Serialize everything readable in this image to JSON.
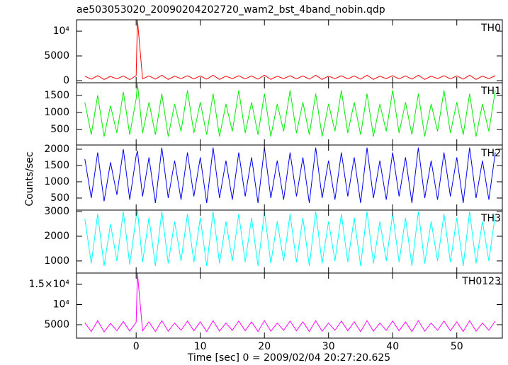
{
  "figure": {
    "title": "ae503053020_20090204202720_wam2_bst_4band_nobin.qdp",
    "ylabel": "Counts/sec",
    "xlabel": "Time [sec] 0 = 2009/02/04 20:27:20.625"
  },
  "chart_data": [
    {
      "type": "line",
      "xlim": [
        -9.3,
        57.1
      ],
      "ylim": [
        -430,
        12300
      ],
      "yticks": [
        0,
        5000,
        {
          "value": 10000,
          "label": "10⁴"
        }
      ],
      "x": [
        -8,
        -7,
        -6,
        -5,
        -4,
        -3,
        -2,
        -1,
        0,
        0.2,
        1,
        2,
        3,
        4,
        5,
        6,
        7,
        8,
        9,
        10,
        11,
        12,
        13,
        14,
        15,
        16,
        17,
        18,
        19,
        20,
        21,
        22,
        23,
        24,
        25,
        26,
        27,
        28,
        29,
        30,
        31,
        32,
        33,
        34,
        35,
        36,
        37,
        38,
        39,
        40,
        41,
        42,
        43,
        44,
        45,
        46,
        47,
        48,
        49,
        50,
        51,
        52,
        53,
        54,
        55,
        56
      ],
      "series": [
        {
          "name": "TH0",
          "color": "#ff0000",
          "values": [
            900,
            300,
            1000,
            250,
            850,
            350,
            950,
            200,
            1000,
            12300,
            350,
            950,
            300,
            1100,
            250,
            900,
            400,
            1000,
            350,
            950,
            300,
            1100,
            250,
            900,
            400,
            1000,
            350,
            950,
            300,
            1100,
            250,
            900,
            400,
            1000,
            350,
            950,
            300,
            1100,
            250,
            900,
            400,
            1000,
            350,
            950,
            300,
            1100,
            250,
            900,
            400,
            1000,
            350,
            950,
            300,
            1100,
            250,
            900,
            400,
            1000,
            350,
            950,
            300,
            1100,
            250,
            900,
            400,
            1000
          ]
        }
      ]
    },
    {
      "type": "line",
      "xlim": [
        -9.3,
        57.1
      ],
      "ylim": [
        50,
        1870
      ],
      "yticks": [
        500,
        1000,
        1500
      ],
      "x": [
        -8,
        -7,
        -6,
        -5,
        -4,
        -3,
        -2,
        -1,
        0,
        0.2,
        1,
        2,
        3,
        4,
        5,
        6,
        7,
        8,
        9,
        10,
        11,
        12,
        13,
        14,
        15,
        16,
        17,
        18,
        19,
        20,
        21,
        22,
        23,
        24,
        25,
        26,
        27,
        28,
        29,
        30,
        31,
        32,
        33,
        34,
        35,
        36,
        37,
        38,
        39,
        40,
        41,
        42,
        43,
        44,
        45,
        46,
        47,
        48,
        49,
        50,
        51,
        52,
        53,
        54,
        55,
        56
      ],
      "series": [
        {
          "name": "TH1",
          "color": "#00ee00",
          "values": [
            1300,
            350,
            1500,
            300,
            1200,
            400,
            1600,
            350,
            1400,
            1850,
            400,
            1300,
            350,
            1550,
            300,
            1250,
            450,
            1650,
            400,
            1300,
            350,
            1550,
            300,
            1250,
            450,
            1650,
            400,
            1300,
            350,
            1550,
            300,
            1250,
            450,
            1650,
            400,
            1300,
            350,
            1550,
            300,
            1250,
            450,
            1650,
            400,
            1300,
            350,
            1550,
            300,
            1250,
            450,
            1650,
            400,
            1300,
            350,
            1550,
            300,
            1250,
            450,
            1650,
            400,
            1300,
            350,
            1550,
            300,
            1250,
            450,
            1650
          ]
        }
      ]
    },
    {
      "type": "line",
      "xlim": [
        -9.3,
        57.1
      ],
      "ylim": [
        130,
        2130
      ],
      "yticks": [
        500,
        1000,
        1500,
        2000
      ],
      "x": [
        -8,
        -7,
        -6,
        -5,
        -4,
        -3,
        -2,
        -1,
        0,
        0.2,
        1,
        2,
        3,
        4,
        5,
        6,
        7,
        8,
        9,
        10,
        11,
        12,
        13,
        14,
        15,
        16,
        17,
        18,
        19,
        20,
        21,
        22,
        23,
        24,
        25,
        26,
        27,
        28,
        29,
        30,
        31,
        32,
        33,
        34,
        35,
        36,
        37,
        38,
        39,
        40,
        41,
        42,
        43,
        44,
        45,
        46,
        47,
        48,
        49,
        50,
        51,
        52,
        53,
        54,
        55,
        56
      ],
      "series": [
        {
          "name": "TH2",
          "color": "#0000ee",
          "values": [
            1700,
            500,
            1900,
            400,
            1600,
            600,
            2000,
            450,
            1800,
            1950,
            550,
            1750,
            350,
            2050,
            500,
            1650,
            450,
            1900,
            550,
            1750,
            350,
            2050,
            500,
            1650,
            450,
            1900,
            550,
            1750,
            350,
            2050,
            500,
            1650,
            450,
            1900,
            550,
            1750,
            350,
            2050,
            500,
            1650,
            450,
            1900,
            550,
            1750,
            350,
            2050,
            500,
            1650,
            450,
            1900,
            550,
            1750,
            350,
            2050,
            500,
            1650,
            450,
            1900,
            550,
            1750,
            350,
            2050,
            500,
            1650,
            450,
            1900
          ]
        }
      ]
    },
    {
      "type": "line",
      "xlim": [
        -9.3,
        57.1
      ],
      "ylim": [
        510,
        3060
      ],
      "yticks": [
        1000,
        2000,
        3000
      ],
      "x": [
        -8,
        -7,
        -6,
        -5,
        -4,
        -3,
        -2,
        -1,
        0,
        0.2,
        1,
        2,
        3,
        4,
        5,
        6,
        7,
        8,
        9,
        10,
        11,
        12,
        13,
        14,
        15,
        16,
        17,
        18,
        19,
        20,
        21,
        22,
        23,
        24,
        25,
        26,
        27,
        28,
        29,
        30,
        31,
        32,
        33,
        34,
        35,
        36,
        37,
        38,
        39,
        40,
        41,
        42,
        43,
        44,
        45,
        46,
        47,
        48,
        49,
        50,
        51,
        52,
        53,
        54,
        55,
        56
      ],
      "series": [
        {
          "name": "TH3",
          "color": "#00ffff",
          "values": [
            2700,
            900,
            2900,
            800,
            2500,
            1000,
            3000,
            850,
            2800,
            3060,
            950,
            2750,
            800,
            3000,
            900,
            2600,
            1000,
            2900,
            950,
            2750,
            800,
            3000,
            900,
            2600,
            1000,
            2900,
            950,
            2750,
            800,
            3000,
            900,
            2600,
            1000,
            2900,
            950,
            2750,
            800,
            3000,
            900,
            2600,
            1000,
            2900,
            950,
            2750,
            800,
            3000,
            900,
            2600,
            1000,
            2900,
            950,
            2750,
            800,
            3000,
            900,
            2600,
            1000,
            2900,
            950,
            2750,
            800,
            3000,
            900,
            2600,
            1000,
            2900
          ]
        }
      ]
    },
    {
      "type": "line",
      "xlim": [
        -9.3,
        57.1
      ],
      "ylim": [
        1670,
        17800
      ],
      "yticks": [
        5000,
        {
          "value": 10000,
          "label": "10⁴"
        },
        {
          "value": 15000,
          "label": "1.5×10⁴"
        }
      ],
      "xticks": [
        0,
        10,
        20,
        30,
        40,
        50
      ],
      "x": [
        -8,
        -7,
        -6,
        -5,
        -4,
        -3,
        -2,
        -1,
        0,
        0.2,
        1,
        2,
        3,
        4,
        5,
        6,
        7,
        8,
        9,
        10,
        11,
        12,
        13,
        14,
        15,
        16,
        17,
        18,
        19,
        20,
        21,
        22,
        23,
        24,
        25,
        26,
        27,
        28,
        29,
        30,
        31,
        32,
        33,
        34,
        35,
        36,
        37,
        38,
        39,
        40,
        41,
        42,
        43,
        44,
        45,
        46,
        47,
        48,
        49,
        50,
        51,
        52,
        53,
        54,
        55,
        56
      ],
      "series": [
        {
          "name": "TH0123",
          "color": "#ff00ff",
          "values": [
            5500,
            3300,
            6000,
            3200,
            5300,
            3500,
            5800,
            3400,
            5600,
            17800,
            3500,
            5700,
            3300,
            6000,
            3400,
            5400,
            3600,
            5900,
            3500,
            5700,
            3300,
            6000,
            3400,
            5400,
            3600,
            5900,
            3500,
            5700,
            3300,
            6000,
            3400,
            5400,
            3600,
            5900,
            3500,
            5700,
            3300,
            6000,
            3400,
            5400,
            3600,
            5900,
            3500,
            5700,
            3300,
            6000,
            3400,
            5400,
            3600,
            5900,
            3500,
            5700,
            3300,
            6000,
            3400,
            5400,
            3600,
            5900,
            3500,
            5700,
            3300,
            6000,
            3400,
            5400,
            3600,
            5900
          ]
        }
      ]
    }
  ]
}
